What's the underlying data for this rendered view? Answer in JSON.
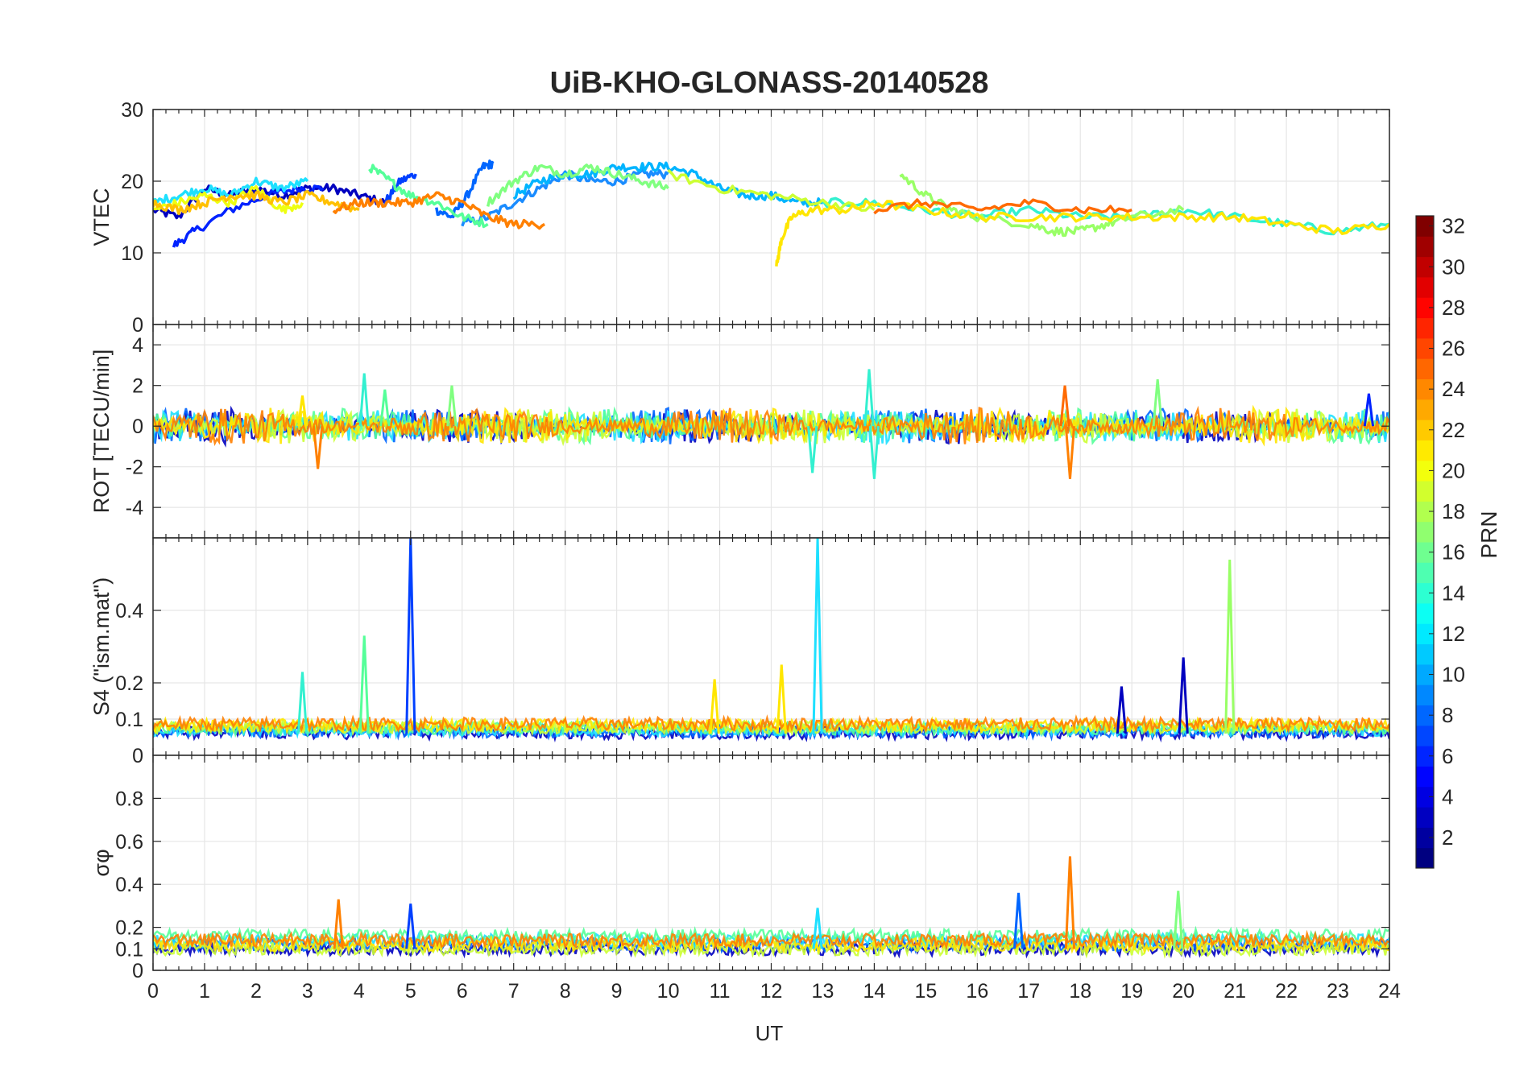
{
  "figure": {
    "title": "UiB-KHO-GLONASS-20140528",
    "xlabel": "UT",
    "xticks": [
      "0",
      "1",
      "2",
      "3",
      "4",
      "5",
      "6",
      "7",
      "8",
      "9",
      "10",
      "11",
      "12",
      "13",
      "14",
      "15",
      "16",
      "17",
      "18",
      "19",
      "20",
      "21",
      "22",
      "23",
      "24"
    ]
  },
  "colorbar": {
    "label": "PRN",
    "range": [
      1,
      32
    ],
    "ticks": [
      "2",
      "4",
      "6",
      "8",
      "10",
      "12",
      "14",
      "16",
      "18",
      "20",
      "22",
      "24",
      "26",
      "28",
      "30",
      "32"
    ],
    "tick_values": [
      2,
      4,
      6,
      8,
      10,
      12,
      14,
      16,
      18,
      20,
      22,
      24,
      26,
      28,
      30,
      32
    ],
    "colormap": "jet"
  },
  "chart_data": [
    {
      "type": "line",
      "ylabel": "VTEC",
      "ylim": [
        0,
        30
      ],
      "xlim": [
        0,
        24
      ],
      "yticks": [
        "0",
        "10",
        "20",
        "30"
      ],
      "ytick_values": [
        0,
        10,
        20,
        30
      ],
      "grid": true,
      "series": [
        {
          "prn": 2,
          "color": "#0000bf",
          "x": [
            0,
            0.5,
            1,
            1.5,
            2,
            2.5,
            3,
            3.5,
            4,
            4.5
          ],
          "y": [
            16,
            15,
            19,
            18,
            19,
            18,
            19,
            19,
            18,
            17
          ]
        },
        {
          "prn": 4,
          "color": "#0022ff",
          "x": [
            0.4,
            0.8,
            1.5,
            2.2,
            2.8,
            3.3
          ],
          "y": [
            11,
            13,
            16,
            18,
            19,
            19
          ]
        },
        {
          "prn": 5,
          "color": "#0040ff",
          "x": [
            4.5,
            4.8,
            5.1
          ],
          "y": [
            17,
            20,
            21
          ]
        },
        {
          "prn": 6,
          "color": "#0066ff",
          "x": [
            5.5,
            5.8,
            6.1,
            6.4,
            6.6
          ],
          "y": [
            16,
            15,
            18,
            22,
            22.5
          ]
        },
        {
          "prn": 8,
          "color": "#1a8cff",
          "x": [
            6,
            6.5,
            7,
            7.5,
            8,
            8.5,
            9,
            9.5,
            10
          ],
          "y": [
            14,
            15,
            17,
            19,
            21,
            20,
            20,
            21,
            21
          ]
        },
        {
          "prn": 10,
          "color": "#00b4ff",
          "x": [
            7,
            7.5,
            8,
            8.5,
            9,
            9.5,
            10,
            10.5,
            11,
            11.5,
            12,
            12.5,
            13
          ],
          "y": [
            18,
            20,
            21,
            21,
            22,
            22,
            22,
            21,
            19,
            18,
            18,
            17,
            17
          ]
        },
        {
          "prn": 12,
          "color": "#1ee0ff",
          "x": [
            0,
            0.5,
            1,
            1.5,
            2,
            2.5,
            3
          ],
          "y": [
            17,
            18,
            19,
            18,
            20,
            19,
            20
          ]
        },
        {
          "prn": 13,
          "color": "#33f0d0",
          "x": [
            13,
            14,
            15,
            16,
            17,
            18,
            19,
            20,
            21,
            22,
            23,
            24
          ],
          "y": [
            17,
            17,
            16,
            15,
            16,
            15,
            15,
            16,
            15,
            14,
            13,
            14
          ]
        },
        {
          "prn": 15,
          "color": "#55ff99",
          "x": [
            4.2,
            4.6,
            5,
            5.5,
            6,
            6.5
          ],
          "y": [
            22,
            20,
            18,
            17,
            15,
            14
          ]
        },
        {
          "prn": 16,
          "color": "#80ff80",
          "x": [
            6.5,
            7,
            7.5,
            8,
            8.5,
            9,
            9.5,
            10
          ],
          "y": [
            17,
            20,
            22,
            21,
            22,
            21,
            20,
            19
          ]
        },
        {
          "prn": 17,
          "color": "#99ff66",
          "x": [
            14.5,
            15,
            15.5,
            16,
            17,
            17.5,
            18,
            18.5,
            19,
            20
          ],
          "y": [
            21,
            18,
            16,
            15,
            14,
            13,
            13,
            14,
            15,
            16
          ]
        },
        {
          "prn": 19,
          "color": "#ccff33",
          "x": [
            10,
            11,
            12,
            13,
            14
          ],
          "y": [
            21,
            19,
            18,
            17,
            16
          ]
        },
        {
          "prn": 20,
          "color": "#eeff11",
          "x": [
            0,
            0.5,
            1,
            1.5,
            2,
            2.5,
            2.9
          ],
          "y": [
            16,
            17,
            18,
            17,
            19,
            16,
            17
          ]
        },
        {
          "prn": 21,
          "color": "#ffe600",
          "x": [
            12.1,
            12.2,
            12.4,
            12.8,
            13.5,
            14,
            15,
            16,
            17,
            18,
            19,
            20,
            21,
            22,
            23,
            24
          ],
          "y": [
            8,
            12,
            15,
            16,
            16,
            17,
            16,
            15,
            15,
            15,
            15,
            15,
            15,
            14,
            13,
            14
          ]
        },
        {
          "prn": 22,
          "color": "#ffc000",
          "x": [
            0,
            0.5,
            1,
            1.5,
            2,
            2.5,
            3,
            3.5,
            4
          ],
          "y": [
            17,
            16,
            17,
            18,
            18,
            17,
            18,
            17,
            16
          ]
        },
        {
          "prn": 24,
          "color": "#ff8000",
          "x": [
            3.5,
            4,
            4.5,
            5,
            5.5,
            6,
            6.5,
            7,
            7.6
          ],
          "y": [
            16,
            17,
            17,
            17,
            18,
            17,
            15,
            14,
            14
          ]
        },
        {
          "prn": 23,
          "color": "#ff6a00",
          "x": [
            14,
            15,
            16,
            17,
            18,
            19
          ],
          "y": [
            16,
            17,
            16,
            17,
            16,
            16
          ]
        }
      ]
    },
    {
      "type": "line",
      "ylabel": "ROT [TECU/min]",
      "ylim": [
        -5.5,
        5
      ],
      "xlim": [
        0,
        24
      ],
      "yticks": [
        "-4",
        "-2",
        "0",
        "2",
        "4"
      ],
      "ytick_values": [
        -4,
        -2,
        0,
        2,
        4
      ],
      "grid": true,
      "noise_description_free": true,
      "spikes": [
        {
          "x": 2.9,
          "y": 1.5,
          "color": "#ffe600"
        },
        {
          "x": 3.2,
          "y": -2.1,
          "color": "#ff8000"
        },
        {
          "x": 4.1,
          "y": 2.6,
          "color": "#33f0d0"
        },
        {
          "x": 4.5,
          "y": 1.8,
          "color": "#55ff99"
        },
        {
          "x": 5.8,
          "y": 2.0,
          "color": "#80ff80"
        },
        {
          "x": 12.8,
          "y": -2.3,
          "color": "#33f0d0"
        },
        {
          "x": 13.9,
          "y": 2.8,
          "color": "#33f0d0"
        },
        {
          "x": 14.0,
          "y": -2.6,
          "color": "#33f0d0"
        },
        {
          "x": 17.7,
          "y": 2.0,
          "color": "#ff6a00"
        },
        {
          "x": 17.8,
          "y": -2.6,
          "color": "#ff8000"
        },
        {
          "x": 19.5,
          "y": 2.3,
          "color": "#80ff80"
        },
        {
          "x": 23.6,
          "y": 1.6,
          "color": "#0022ff"
        }
      ]
    },
    {
      "type": "line",
      "ylabel": "S4 (\"ism.mat\")",
      "ylim": [
        0,
        0.6
      ],
      "xlim": [
        0,
        24
      ],
      "yticks": [
        "0",
        "0.1",
        "0.2",
        "0.4"
      ],
      "ytick_values": [
        0,
        0.1,
        0.2,
        0.4
      ],
      "grid": true,
      "spikes": [
        {
          "x": 2.9,
          "y": 0.23,
          "color": "#33f0d0"
        },
        {
          "x": 4.1,
          "y": 0.33,
          "color": "#55ff99"
        },
        {
          "x": 5.0,
          "y": 0.6,
          "color": "#0040ff"
        },
        {
          "x": 10.9,
          "y": 0.21,
          "color": "#ffe600"
        },
        {
          "x": 12.2,
          "y": 0.25,
          "color": "#ffe600"
        },
        {
          "x": 12.9,
          "y": 0.6,
          "color": "#1ee0ff"
        },
        {
          "x": 18.8,
          "y": 0.19,
          "color": "#0000bf"
        },
        {
          "x": 20.0,
          "y": 0.27,
          "color": "#0000bf"
        },
        {
          "x": 20.9,
          "y": 0.54,
          "color": "#99ff66"
        }
      ]
    },
    {
      "type": "line",
      "ylabel": "σφ",
      "ylim": [
        0,
        1
      ],
      "xlim": [
        0,
        24
      ],
      "yticks": [
        "0",
        "0.1",
        "0.2",
        "0.4",
        "0.6",
        "0.8"
      ],
      "ytick_values": [
        0,
        0.1,
        0.2,
        0.4,
        0.6,
        0.8
      ],
      "grid": true,
      "spikes": [
        {
          "x": 3.6,
          "y": 0.33,
          "color": "#ff8000"
        },
        {
          "x": 5.0,
          "y": 0.31,
          "color": "#0040ff"
        },
        {
          "x": 12.9,
          "y": 0.29,
          "color": "#1ee0ff"
        },
        {
          "x": 16.8,
          "y": 0.36,
          "color": "#0066ff"
        },
        {
          "x": 17.8,
          "y": 0.53,
          "color": "#ff8000"
        },
        {
          "x": 19.9,
          "y": 0.37,
          "color": "#80ff80"
        }
      ]
    }
  ]
}
